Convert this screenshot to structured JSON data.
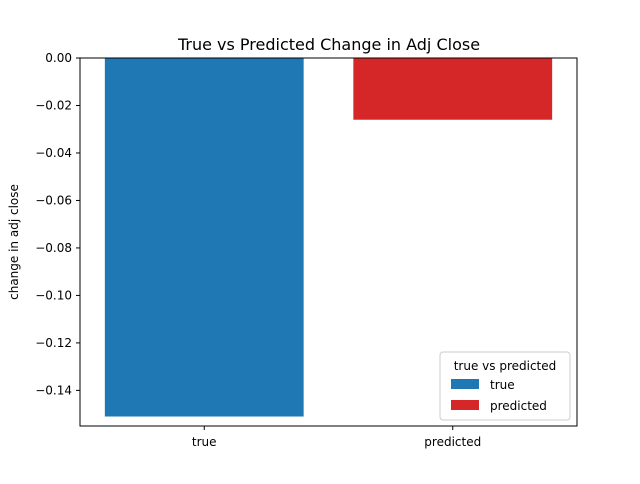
{
  "chart_data": {
    "type": "bar",
    "title": "True vs Predicted Change in Adj Close",
    "xlabel": "",
    "ylabel": "change in adj close",
    "categories": [
      "true",
      "predicted"
    ],
    "values": [
      -0.151,
      -0.026
    ],
    "colors": [
      "#1f77b4",
      "#d62728"
    ],
    "ylim": [
      -0.155,
      0.0
    ],
    "yticks": [
      0.0,
      -0.02,
      -0.04,
      -0.06,
      -0.08,
      -0.1,
      -0.12,
      -0.14
    ],
    "ytick_labels": [
      "0.00",
      "−0.02",
      "−0.04",
      "−0.06",
      "−0.08",
      "−0.10",
      "−0.12",
      "−0.14"
    ],
    "grid": false,
    "legend": {
      "title": "true vs predicted",
      "placement": "lower-right",
      "entries": [
        {
          "label": "true",
          "color": "#1f77b4"
        },
        {
          "label": "predicted",
          "color": "#d62728"
        }
      ]
    }
  }
}
